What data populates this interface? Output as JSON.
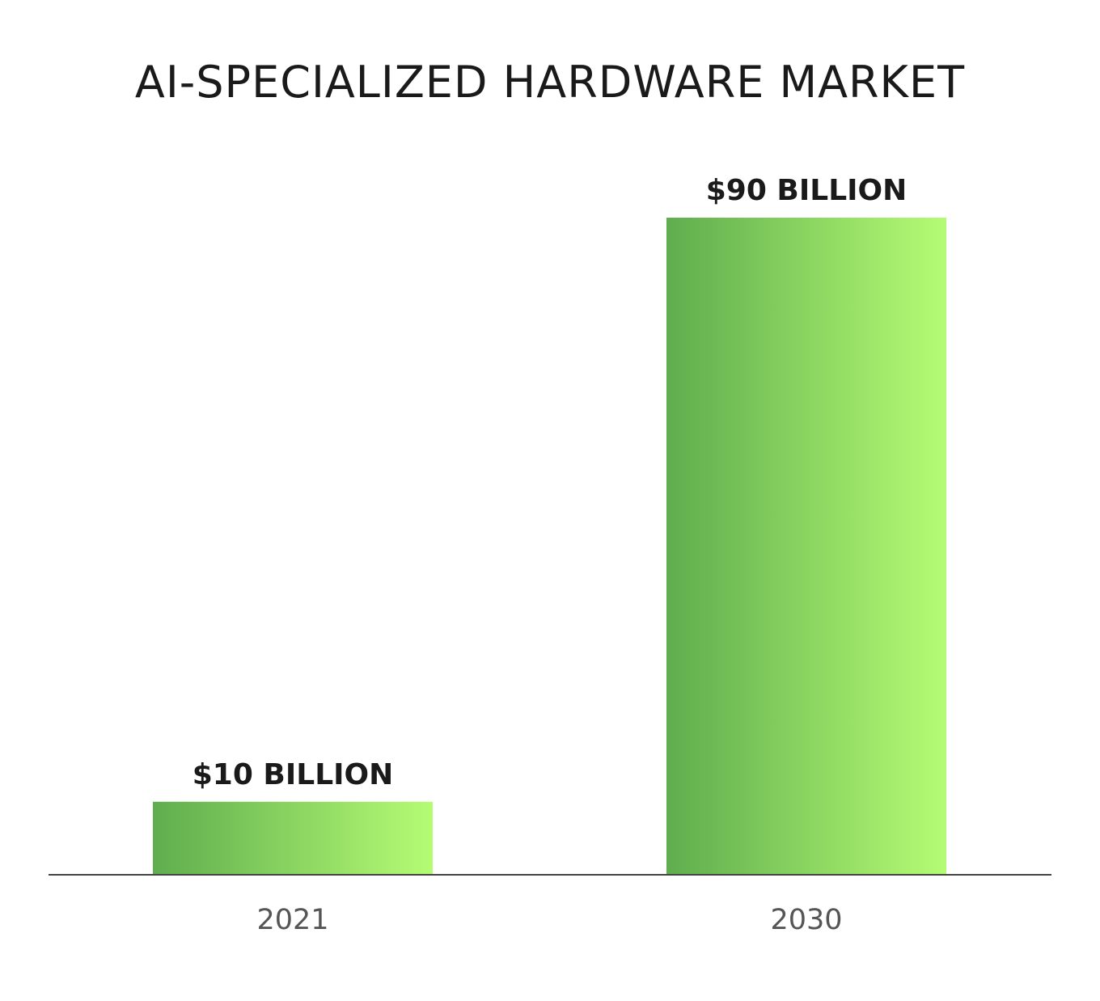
{
  "chart_data": {
    "type": "bar",
    "title": "AI-SPECIALIZED HARDWARE MARKET",
    "categories": [
      "2021",
      "2030"
    ],
    "values": [
      10,
      90
    ],
    "data_labels": [
      "$10 BILLION",
      "$90 BILLION"
    ],
    "unit": "billion USD",
    "xlabel": "",
    "ylabel": "",
    "ylim": [
      0,
      90
    ],
    "grid": false,
    "legend": "none",
    "colors": {
      "bar_gradient_start": "#5fad4e",
      "bar_gradient_end": "#b5fc74",
      "axis": "#444444",
      "text": "#1a1a1a",
      "tick_text": "#555555"
    }
  }
}
